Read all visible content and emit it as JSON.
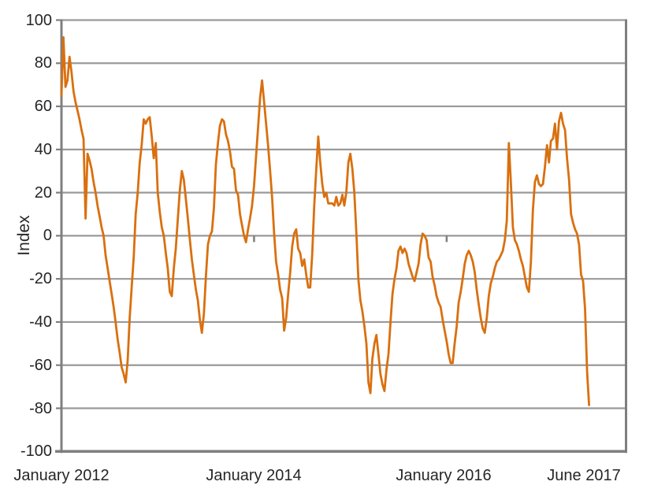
{
  "chart_data": {
    "type": "line",
    "title": "",
    "ylabel": "Index",
    "series_name": "Index",
    "legend": "none",
    "grid": "horizontal",
    "line_color": "#D9700F",
    "grid_color": "#9A9A9A",
    "axis_color": "#7F7F7F",
    "text_color": "#262626",
    "background_color": "#FFFFFF",
    "ylim": [
      -100,
      100
    ],
    "y_tick_step": 20,
    "y_axis": {
      "tick_labels": [
        "100",
        "80",
        "60",
        "40",
        "20",
        "0",
        "-20",
        "-40",
        "-60",
        "-80",
        "-100"
      ]
    },
    "x_axis": {
      "unit": "months since January 2012",
      "range_months": [
        0,
        70.5
      ],
      "ticks": [
        {
          "label": "January 2012",
          "month": 0
        },
        {
          "label": "January 2014",
          "month": 24
        },
        {
          "label": "January 2016",
          "month": 48
        },
        {
          "label": "June 2017",
          "month": 65
        }
      ],
      "inner_tick_months": [
        24,
        48
      ],
      "axis_crosses_at": 0
    },
    "points": {
      "x_start_month": 0,
      "x_step_month": 0.25,
      "values": [
        65,
        92,
        69,
        72,
        83,
        76,
        67,
        62,
        58,
        54,
        49,
        45,
        8,
        38,
        35,
        31,
        25,
        20,
        14,
        9,
        4,
        0,
        -9,
        -15,
        -21,
        -27,
        -33,
        -40,
        -48,
        -54,
        -61,
        -64,
        -68,
        -58,
        -38,
        -24,
        -10,
        10,
        20,
        34,
        42,
        54,
        52,
        54,
        55,
        46,
        36,
        43,
        20,
        11,
        4,
        0,
        -8,
        -15,
        -26,
        -28,
        -15,
        -6,
        8,
        21,
        30,
        26,
        17,
        8,
        -2,
        -11,
        -18,
        -25,
        -30,
        -39,
        -45,
        -36,
        -19,
        -4,
        0,
        2,
        13,
        33,
        43,
        51,
        54,
        53,
        47,
        44,
        39,
        32,
        31,
        21,
        19,
        10,
        5,
        0,
        -3,
        3,
        8,
        14,
        23,
        37,
        50,
        64,
        72,
        62,
        52,
        42,
        30,
        18,
        1,
        -12,
        -18,
        -25,
        -29,
        -44,
        -38,
        -27,
        -17,
        -5,
        1,
        3,
        -6,
        -8,
        -14,
        -11,
        -18,
        -24,
        -24,
        -8,
        14,
        31,
        46,
        34,
        24,
        18,
        20,
        15,
        15,
        15,
        14,
        18,
        14,
        15,
        19,
        14,
        20,
        34,
        38,
        31,
        20,
        1,
        -20,
        -30,
        -35,
        -42,
        -50,
        -68,
        -73,
        -57,
        -50,
        -46,
        -55,
        -64,
        -69,
        -72,
        -62,
        -55,
        -40,
        -27,
        -20,
        -15,
        -7,
        -5,
        -8,
        -6,
        -8,
        -13,
        -16,
        -19,
        -21,
        -17,
        -13,
        -4,
        1,
        0,
        -2,
        -10,
        -12,
        -19,
        -23,
        -28,
        -31,
        -33,
        -39,
        -44,
        -49,
        -55,
        -59,
        -59,
        -50,
        -42,
        -31,
        -26,
        -20,
        -13,
        -9,
        -7,
        -9,
        -12,
        -17,
        -25,
        -32,
        -38,
        -43,
        -45,
        -38,
        -28,
        -22,
        -19,
        -15,
        -12,
        -11,
        -9,
        -7,
        -2,
        7,
        43,
        25,
        4,
        -2,
        -4,
        -7,
        -11,
        -14,
        -19,
        -24,
        -26,
        -12,
        12,
        25,
        28,
        24,
        23,
        24,
        32,
        42,
        34,
        44,
        45,
        52,
        40,
        53,
        57,
        52,
        49,
        36,
        26,
        10,
        6,
        3,
        1,
        -4,
        -18,
        -21,
        -34,
        -63,
        -78.5
      ]
    }
  }
}
